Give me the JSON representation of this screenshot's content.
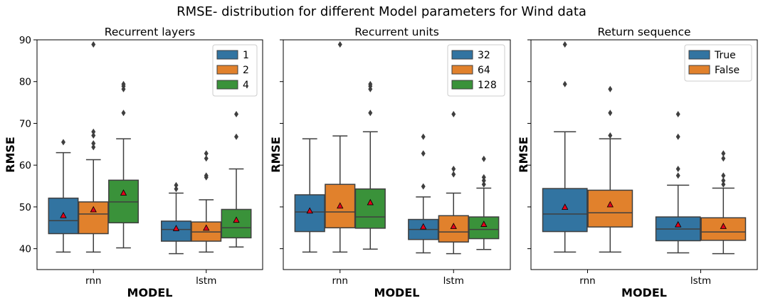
{
  "figure": {
    "title": "RMSE- distribution for different Model parameters for Wind data"
  },
  "chart_data": [
    {
      "type": "box",
      "title": "Recurrent layers",
      "xlabel": "MODEL",
      "ylabel": "RMSE",
      "categories": [
        "rnn",
        "lstm"
      ],
      "ylim": [
        35,
        90
      ],
      "yticks": [
        40,
        50,
        60,
        70,
        80,
        90
      ],
      "legend_position": "top-right",
      "series": [
        {
          "name": "1",
          "color": "#3274a1",
          "boxes": [
            {
              "whislo": 39.2,
              "q1": 43.6,
              "med": 46.7,
              "q3": 52.1,
              "whishi": 63.0,
              "mean": 47.9,
              "fliers": [
                65.5
              ]
            },
            {
              "whislo": 38.8,
              "q1": 41.8,
              "med": 44.6,
              "q3": 46.6,
              "whishi": 53.3,
              "mean": 44.8,
              "fliers": [
                54.3,
                55.2
              ]
            }
          ]
        },
        {
          "name": "2",
          "color": "#e1812c",
          "boxes": [
            {
              "whislo": 39.2,
              "q1": 43.6,
              "med": 48.3,
              "q3": 51.2,
              "whishi": 61.3,
              "mean": 49.3,
              "fliers": [
                64.3,
                65.2,
                67.1,
                68.0,
                88.9
              ]
            },
            {
              "whislo": 39.2,
              "q1": 41.8,
              "med": 44.0,
              "q3": 46.4,
              "whishi": 51.7,
              "mean": 44.9,
              "fliers": [
                57.1,
                57.5,
                61.6,
                62.8
              ]
            }
          ]
        },
        {
          "name": "4",
          "color": "#3a923a",
          "boxes": [
            {
              "whislo": 40.2,
              "q1": 46.2,
              "med": 51.2,
              "q3": 56.4,
              "whishi": 66.3,
              "mean": 53.3,
              "fliers": [
                72.5,
                78.2,
                78.9,
                79.4
              ]
            },
            {
              "whislo": 40.4,
              "q1": 42.6,
              "med": 45.0,
              "q3": 49.4,
              "whishi": 59.1,
              "mean": 46.8,
              "fliers": [
                66.8,
                72.2
              ]
            }
          ]
        }
      ]
    },
    {
      "type": "box",
      "title": "Recurrent units",
      "xlabel": "MODEL",
      "ylabel": "RMSE",
      "categories": [
        "rnn",
        "lstm"
      ],
      "ylim": [
        35,
        90
      ],
      "yticks": [
        40,
        50,
        60,
        70,
        80,
        90
      ],
      "legend_position": "top-right",
      "series": [
        {
          "name": "32",
          "color": "#3274a1",
          "boxes": [
            {
              "whislo": 39.2,
              "q1": 44.1,
              "med": 48.8,
              "q3": 52.9,
              "whishi": 66.3,
              "mean": 49.0,
              "fliers": []
            },
            {
              "whislo": 39.0,
              "q1": 42.2,
              "med": 44.6,
              "q3": 47.0,
              "whishi": 52.4,
              "mean": 45.2,
              "fliers": [
                54.9,
                62.8,
                66.8
              ]
            }
          ]
        },
        {
          "name": "64",
          "color": "#e1812c",
          "boxes": [
            {
              "whislo": 39.2,
              "q1": 45.0,
              "med": 48.8,
              "q3": 55.4,
              "whishi": 67.0,
              "mean": 50.2,
              "fliers": [
                88.9
              ]
            },
            {
              "whislo": 38.8,
              "q1": 41.6,
              "med": 44.0,
              "q3": 47.9,
              "whishi": 53.3,
              "mean": 45.3,
              "fliers": [
                57.8,
                59.1,
                72.2
              ]
            }
          ]
        },
        {
          "name": "128",
          "color": "#3a923a",
          "boxes": [
            {
              "whislo": 39.9,
              "q1": 44.9,
              "med": 47.6,
              "q3": 54.3,
              "whishi": 68.0,
              "mean": 51.0,
              "fliers": [
                72.5,
                78.2,
                78.9,
                79.4
              ]
            },
            {
              "whislo": 39.8,
              "q1": 42.4,
              "med": 44.6,
              "q3": 47.6,
              "whishi": 54.5,
              "mean": 45.8,
              "fliers": [
                55.4,
                56.3,
                57.1,
                61.5
              ]
            }
          ]
        }
      ]
    },
    {
      "type": "box",
      "title": "Return sequence",
      "xlabel": "MODEL",
      "ylabel": "RMSE",
      "categories": [
        "rnn",
        "lstm"
      ],
      "ylim": [
        35,
        90
      ],
      "yticks": [
        40,
        50,
        60,
        70,
        80,
        90
      ],
      "legend_position": "top-right",
      "series": [
        {
          "name": "True",
          "color": "#3274a1",
          "boxes": [
            {
              "whislo": 39.2,
              "q1": 44.1,
              "med": 48.3,
              "q3": 54.4,
              "whishi": 68.0,
              "mean": 49.9,
              "fliers": [
                79.4,
                88.9
              ]
            },
            {
              "whislo": 39.0,
              "q1": 41.9,
              "med": 44.7,
              "q3": 47.6,
              "whishi": 55.2,
              "mean": 45.7,
              "fliers": [
                57.5,
                59.1,
                66.8,
                72.2
              ]
            }
          ]
        },
        {
          "name": "False",
          "color": "#e1812c",
          "boxes": [
            {
              "whislo": 39.2,
              "q1": 45.2,
              "med": 48.6,
              "q3": 54.0,
              "whishi": 66.3,
              "mean": 50.5,
              "fliers": [
                67.1,
                72.5,
                78.2
              ]
            },
            {
              "whislo": 38.8,
              "q1": 42.0,
              "med": 44.0,
              "q3": 47.4,
              "whishi": 54.5,
              "mean": 45.3,
              "fliers": [
                55.4,
                56.3,
                57.5,
                61.6,
                62.8
              ]
            }
          ]
        }
      ]
    }
  ]
}
